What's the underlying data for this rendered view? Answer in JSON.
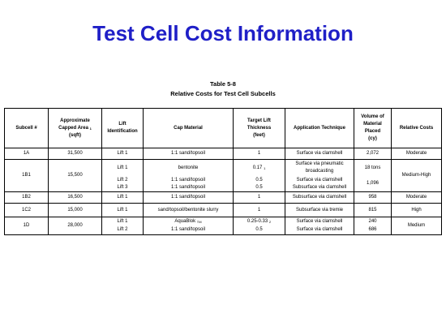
{
  "slide_title": "Test Cell Cost Information",
  "table_caption": {
    "number": "Table 5-8",
    "title": "Relative Costs for Test Cell Subcells"
  },
  "headers": {
    "subcell": "Subcell #",
    "capped_area": {
      "line1": "Approximate",
      "line2": "Capped Area",
      "sup": "1",
      "line3": "(sqft)"
    },
    "lift_id": {
      "line1": "Lift",
      "line2": "Identification"
    },
    "cap_material": "Cap Material",
    "lift_thickness": {
      "line1": "Target Lift",
      "line2": "Thickness",
      "line3": "(feet)"
    },
    "technique": "Application Technique",
    "volume": {
      "line1": "Volume of",
      "line2": "Material",
      "line3": "Placed",
      "line4": "(cy)"
    },
    "relative_costs": "Relative Costs"
  },
  "rows": {
    "r1a": {
      "subcell": "1A",
      "area": "31,500",
      "lift": "Lift 1",
      "material": "1:1 sand/topsoil",
      "thickness": "1",
      "technique": "Surface via clamshell",
      "volume": "2,072",
      "cost": "Moderate"
    },
    "r1b1": {
      "subcell": "1B1",
      "area": "15,500",
      "cost": "Medium-High",
      "lift1": "Lift 1",
      "material1": "bentonite",
      "thickness1": "0.17",
      "thickness1_sup": "1",
      "technique1": "Surface via pneumatic broadcasting",
      "volume1": "18 tons",
      "lift2": "Lift 2",
      "material2": "1:1 sand/topsoil",
      "thickness2": "0.5",
      "technique2": "Surface via clamshell",
      "lift3": "Lift 3",
      "material3": "1:1 sand/topsoil",
      "thickness3": "0.5",
      "technique3": "Subsurface via clamshell",
      "volume23": "1,096"
    },
    "r1b2": {
      "subcell": "1B2",
      "area": "16,500",
      "lift": "Lift 1",
      "material": "1:1 sand/topsoil",
      "thickness": "1",
      "technique": "Subsurface via clamshell",
      "volume": "958",
      "cost": "Moderate"
    },
    "r1c2": {
      "subcell": "1C2",
      "area": "15,000",
      "lift": "Lift 1",
      "material": "sand/topsoil/bentonite slurry",
      "thickness": "1",
      "technique": "Subsurface  via tremie",
      "volume": "815",
      "cost": "High"
    },
    "r1d": {
      "subcell": "1D",
      "area": "28,000",
      "cost": "Medium",
      "lift1": "Lift 1",
      "material1": "AquaBlok",
      "material1_sup": "TM",
      "thickness1": "0.25-0.33",
      "thickness1_sup": "2",
      "technique1": "Surface via clamshell",
      "volume1": "240",
      "lift2": "Lift 2",
      "material2": "1:1 sand/topsoil",
      "thickness2": "0.5",
      "technique2": "Surface via clamshell",
      "volume2": "686"
    }
  }
}
